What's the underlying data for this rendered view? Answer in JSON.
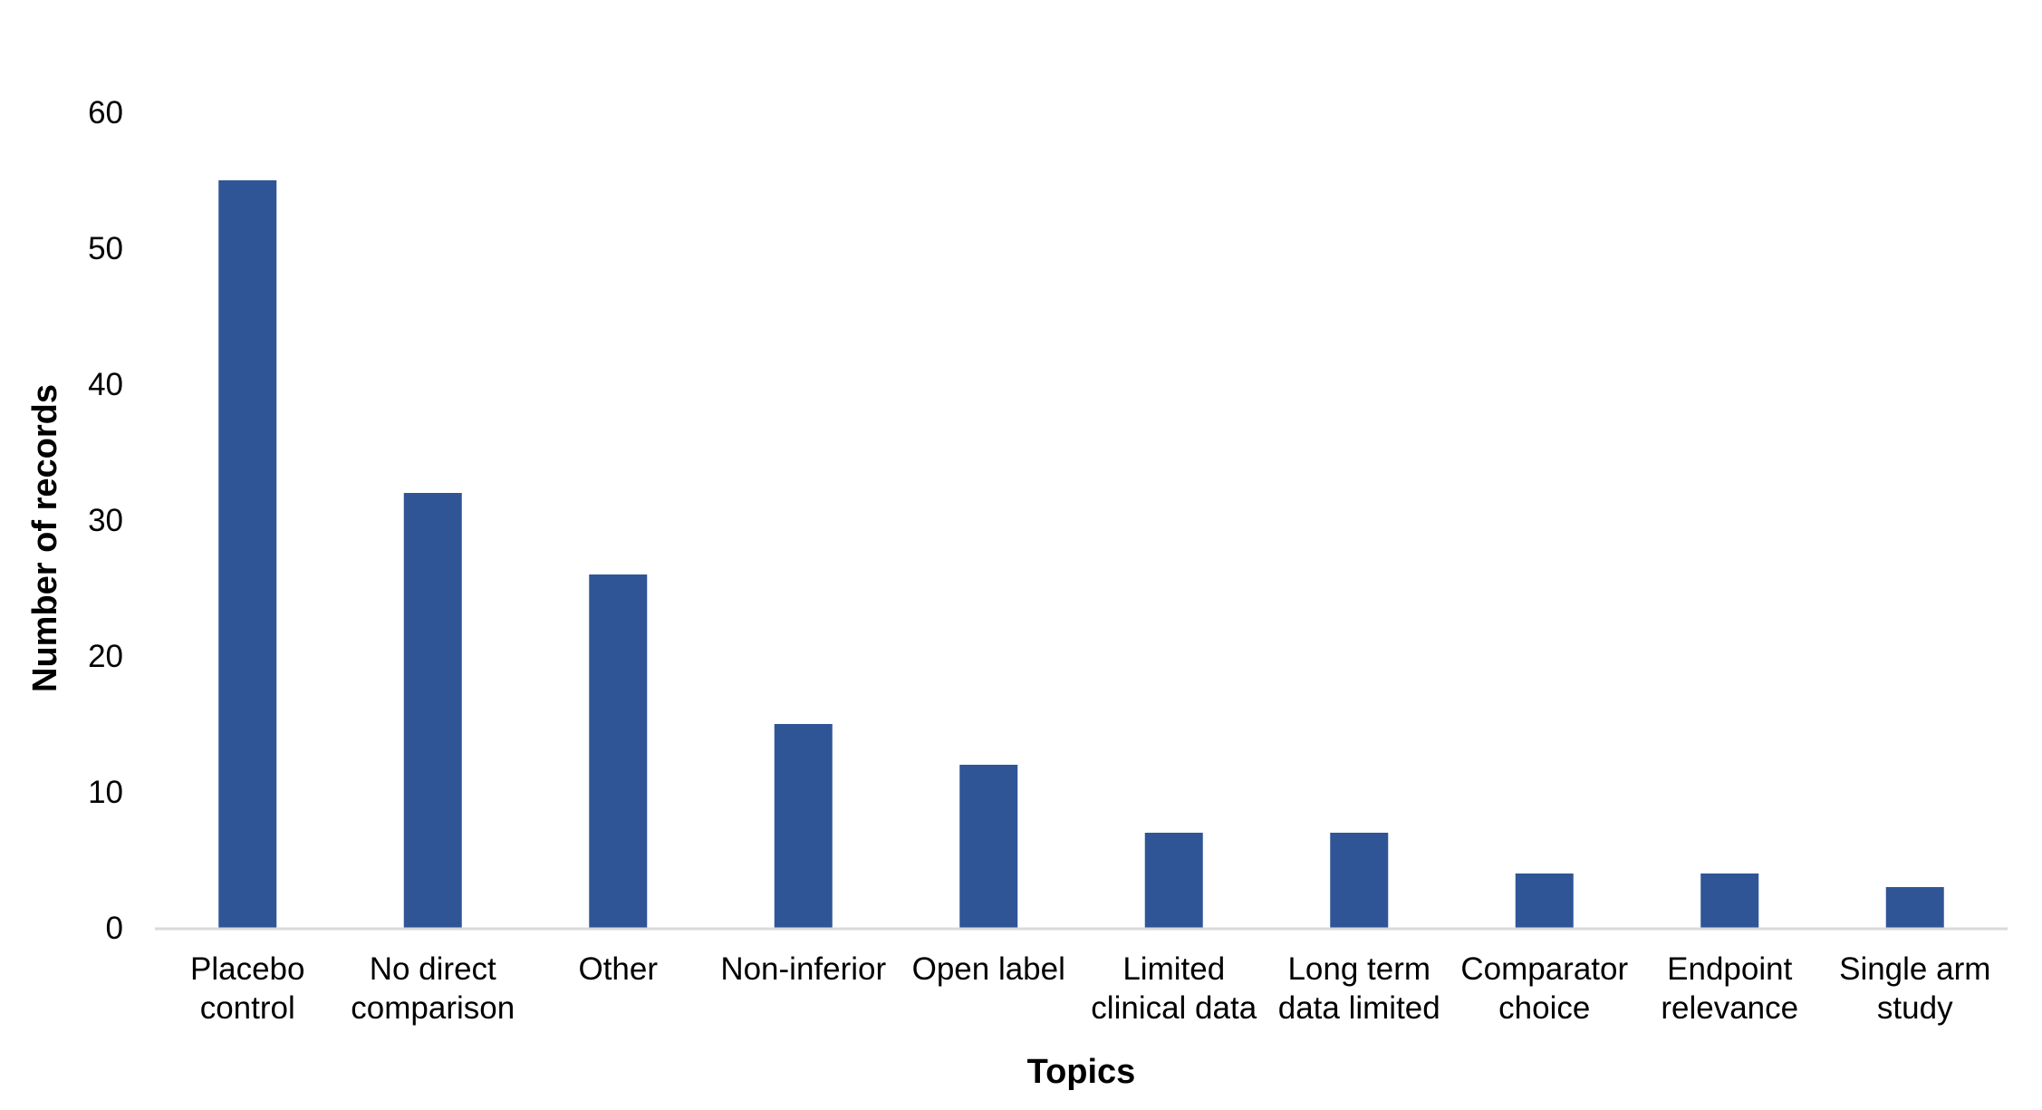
{
  "chart_data": {
    "type": "bar",
    "categories": [
      [
        "Placebo",
        "control"
      ],
      [
        "No direct",
        "comparison"
      ],
      [
        "Other"
      ],
      [
        "Non-inferior"
      ],
      [
        "Open label"
      ],
      [
        "Limited",
        "clinical data"
      ],
      [
        "Long term",
        "data limited"
      ],
      [
        "Comparator",
        "choice"
      ],
      [
        "Endpoint",
        "relevance"
      ],
      [
        "Single arm",
        "study"
      ]
    ],
    "values": [
      55,
      32,
      26,
      15,
      12,
      7,
      7,
      4,
      4,
      3
    ],
    "xlabel": "Topics",
    "ylabel": "Number of records",
    "ylim": [
      0,
      60
    ],
    "yticks": [
      0,
      10,
      20,
      30,
      40,
      50,
      60
    ],
    "grid": false,
    "legend": "none",
    "bar_color": "#2F5597",
    "axis_color": "#D9D9D9"
  }
}
